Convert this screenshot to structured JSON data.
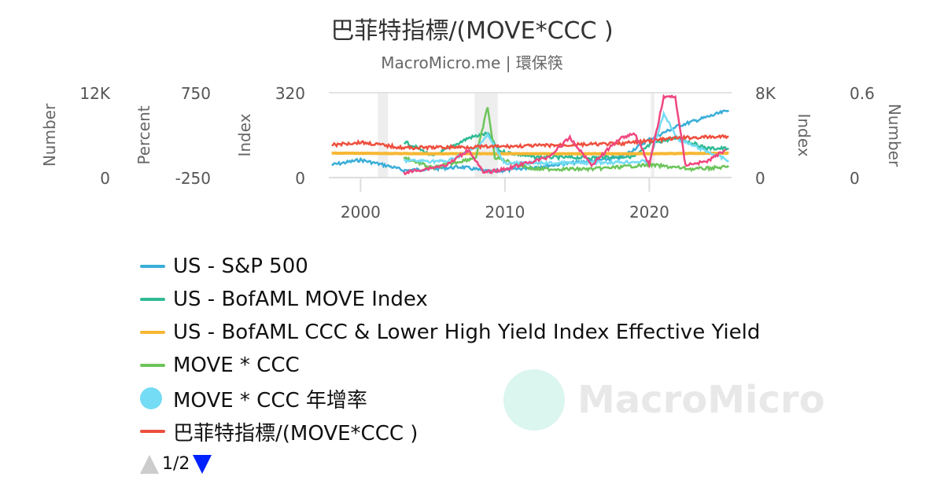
{
  "title": "巴菲特指標/(MOVE*CCC )",
  "subtitle": "MacroMicro.me | 環保筷",
  "watermark": "MacroMicro",
  "chart_data": {
    "type": "line",
    "xlim": [
      1997.8,
      2025.7
    ],
    "xticks": [
      "2000",
      "2010",
      "2020"
    ],
    "recessions": [
      [
        2001.2,
        2001.9
      ],
      [
        2007.9,
        2009.5
      ],
      [
        2020.1,
        2020.35
      ]
    ],
    "axes": [
      {
        "id": "number_left",
        "label": "Number",
        "side": "left",
        "min_label": "0",
        "max_label": "12K",
        "min": 0,
        "max": 12000
      },
      {
        "id": "percent",
        "label": "Percent",
        "side": "left",
        "min_label": "-250",
        "max_label": "750",
        "min": -250,
        "max": 750
      },
      {
        "id": "index_left",
        "label": "Index",
        "side": "left",
        "min_label": "0",
        "max_label": "320",
        "min": 0,
        "max": 320
      },
      {
        "id": "index_right",
        "label": "Index",
        "side": "right",
        "min_label": "0",
        "max_label": "8K",
        "min": 0,
        "max": 8000
      },
      {
        "id": "number_right",
        "label": "Number",
        "side": "right",
        "min_label": "0",
        "max_label": "0.6",
        "min": 0,
        "max": 0.6
      }
    ],
    "series": [
      {
        "name": "US - S&P 500",
        "color": "#3aaed8",
        "axis": "number_left",
        "x": [
          1998,
          2000,
          2002,
          2003,
          2007,
          2009,
          2013,
          2018,
          2020,
          2022,
          2025.5
        ],
        "y": [
          1800,
          2500,
          1600,
          1000,
          1500,
          800,
          1700,
          2800,
          5400,
          7300,
          9500
        ]
      },
      {
        "name": "US - BofAML MOVE Index",
        "color": "#2fba95",
        "axis": "index_left",
        "x": [
          2003,
          2004,
          2005,
          2007.5,
          2008.8,
          2009.6,
          2012,
          2016,
          2019,
          2020.2,
          2022,
          2024,
          2025.5
        ],
        "y": [
          136,
          110,
          80,
          150,
          166,
          100,
          77,
          75,
          80,
          130,
          150,
          110,
          110
        ]
      },
      {
        "name": "US - BofAML CCC & Lower High Yield Index Effective Yield",
        "color": "#f7b733",
        "axis": "index_right",
        "x": [
          1998,
          2005,
          2010,
          2015,
          2020,
          2025.5
        ],
        "y": [
          2300,
          2250,
          2250,
          2250,
          2250,
          2300
        ]
      },
      {
        "name": "MOVE * CCC",
        "color": "#6cc55a",
        "axis": "index_right",
        "x": [
          2003,
          2005,
          2008,
          2008.8,
          2009.3,
          2012,
          2016,
          2020,
          2023,
          2025.5
        ],
        "y": [
          1900,
          900,
          1900,
          6700,
          1900,
          800,
          800,
          1200,
          800,
          1000
        ]
      },
      {
        "name": "MOVE * CCC 年增率",
        "color": "#74dcf4",
        "axis": "percent",
        "x": [
          2003,
          2006,
          2008,
          2008.8,
          2010,
          2015,
          2020,
          2021,
          2022,
          2025.5
        ],
        "y": [
          -50,
          -60,
          100,
          250,
          -80,
          -80,
          -60,
          500,
          200,
          -50
        ]
      },
      {
        "name": "巴菲特指標/(MOVE*CCC )",
        "color": "#ee4f3e",
        "axis": "number_right",
        "x": [
          1998,
          2000,
          2003,
          2010,
          2018,
          2022,
          2025.5
        ],
        "y": [
          0.23,
          0.25,
          0.21,
          0.22,
          0.24,
          0.28,
          0.29
        ]
      },
      {
        "color": "#f0467f",
        "axis": "percent",
        "x": [
          2003,
          2006,
          2007.5,
          2008.5,
          2010,
          2013,
          2014.5,
          2016,
          2018,
          2019,
          2020,
          2021,
          2021.8,
          2022.5,
          2024,
          2025.3
        ],
        "y": [
          -194,
          -100,
          80,
          -194,
          -150,
          -10,
          220,
          -100,
          220,
          270,
          -100,
          700,
          700,
          -100,
          -60,
          80
        ]
      }
    ]
  },
  "legend": {
    "items": [
      {
        "label": "US - S&P 500",
        "color": "#3aaed8"
      },
      {
        "label": "US - BofAML MOVE Index",
        "color": "#2fba95"
      },
      {
        "label": "US - BofAML CCC & Lower High Yield Index Effective Yield",
        "color": "#f7b733"
      },
      {
        "label": "MOVE * CCC",
        "color": "#6cc55a"
      },
      {
        "label": "MOVE * CCC 年增率",
        "color": "#74dcf4"
      },
      {
        "label": "巴菲特指標/(MOVE*CCC )",
        "color": "#ee4f3e"
      }
    ],
    "page": "1/2"
  }
}
